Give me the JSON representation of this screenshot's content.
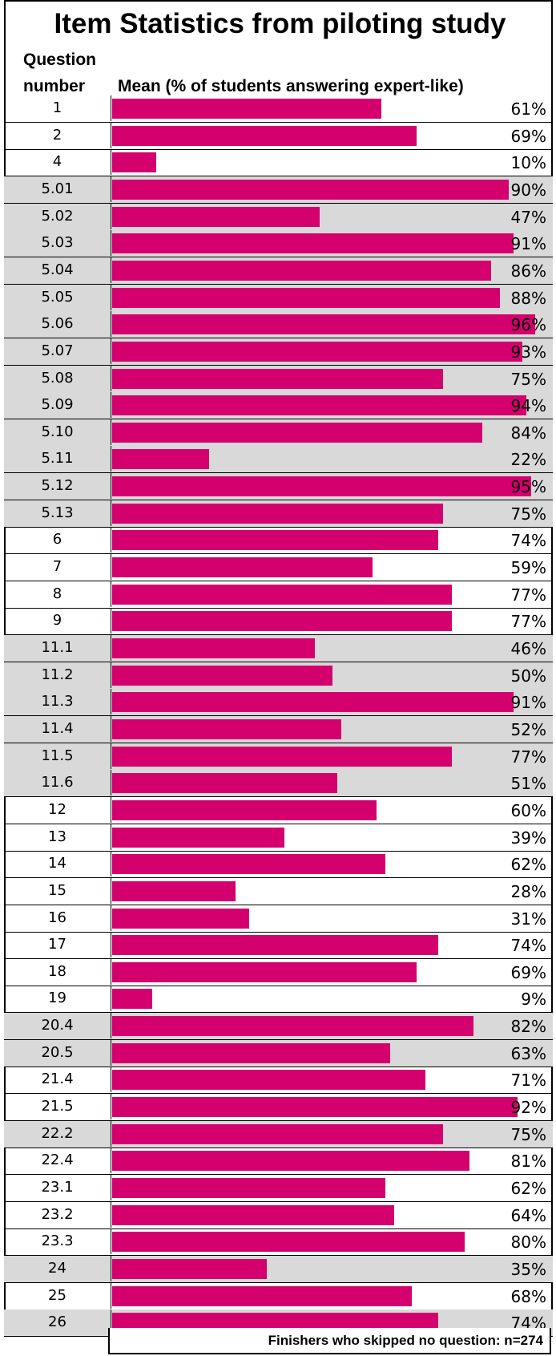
{
  "title": "Item Statistics from piloting study",
  "header": {
    "question_line1": "Question",
    "question_line2": "number",
    "mean_label": "Mean (% of students answering expert-like)"
  },
  "footer": "Finishers who skipped no question: n=274",
  "colors": {
    "bar": "#d4006e",
    "shaded_row": "#d9d9d9"
  },
  "chart_data": {
    "type": "bar",
    "orientation": "horizontal",
    "title": "Item Statistics from piloting study",
    "xlabel": "Mean (% of students answering expert-like)",
    "ylabel": "Question number",
    "xlim": [
      0,
      100
    ],
    "grid": false,
    "categories": [
      "1",
      "2",
      "4",
      "5.01",
      "5.02",
      "5.03",
      "5.04",
      "5.05",
      "5.06",
      "5.07",
      "5.08",
      "5.09",
      "5.10",
      "5.11",
      "5.12",
      "5.13",
      "6",
      "7",
      "8",
      "9",
      "11.1",
      "11.2",
      "11.3",
      "11.4",
      "11.5",
      "11.6",
      "12",
      "13",
      "14",
      "15",
      "16",
      "17",
      "18",
      "19",
      "20.4",
      "20.5",
      "21.4",
      "21.5",
      "22.2",
      "22.4",
      "23.1",
      "23.2",
      "23.3",
      "24",
      "25",
      "26"
    ],
    "values": [
      61,
      69,
      10,
      90,
      47,
      91,
      86,
      88,
      96,
      93,
      75,
      94,
      84,
      22,
      95,
      75,
      74,
      59,
      77,
      77,
      46,
      50,
      91,
      52,
      77,
      51,
      60,
      39,
      62,
      28,
      31,
      74,
      69,
      9,
      82,
      63,
      71,
      92,
      75,
      81,
      62,
      64,
      80,
      35,
      68,
      74
    ],
    "labels": [
      "61%",
      "69%",
      "10%",
      "90%",
      "47%",
      "91%",
      "86%",
      "88%",
      "96%",
      "93%",
      "75%",
      "94%",
      "84%",
      "22%",
      "95%",
      "75%",
      "74%",
      "59%",
      "77%",
      "77%",
      "46%",
      "50%",
      "91%",
      "52%",
      "77%",
      "51%",
      "60%",
      "39%",
      "62%",
      "28%",
      "31%",
      "74%",
      "69%",
      "9%",
      "82%",
      "63%",
      "71%",
      "92%",
      "75%",
      "81%",
      "62%",
      "64%",
      "80%",
      "35%",
      "68%",
      "74%"
    ],
    "shaded": [
      false,
      false,
      false,
      true,
      true,
      true,
      true,
      true,
      true,
      true,
      true,
      true,
      true,
      true,
      true,
      true,
      false,
      false,
      false,
      false,
      true,
      true,
      true,
      true,
      true,
      true,
      false,
      false,
      false,
      false,
      false,
      false,
      false,
      false,
      true,
      true,
      false,
      false,
      true,
      false,
      false,
      false,
      false,
      true,
      false,
      true
    ]
  }
}
